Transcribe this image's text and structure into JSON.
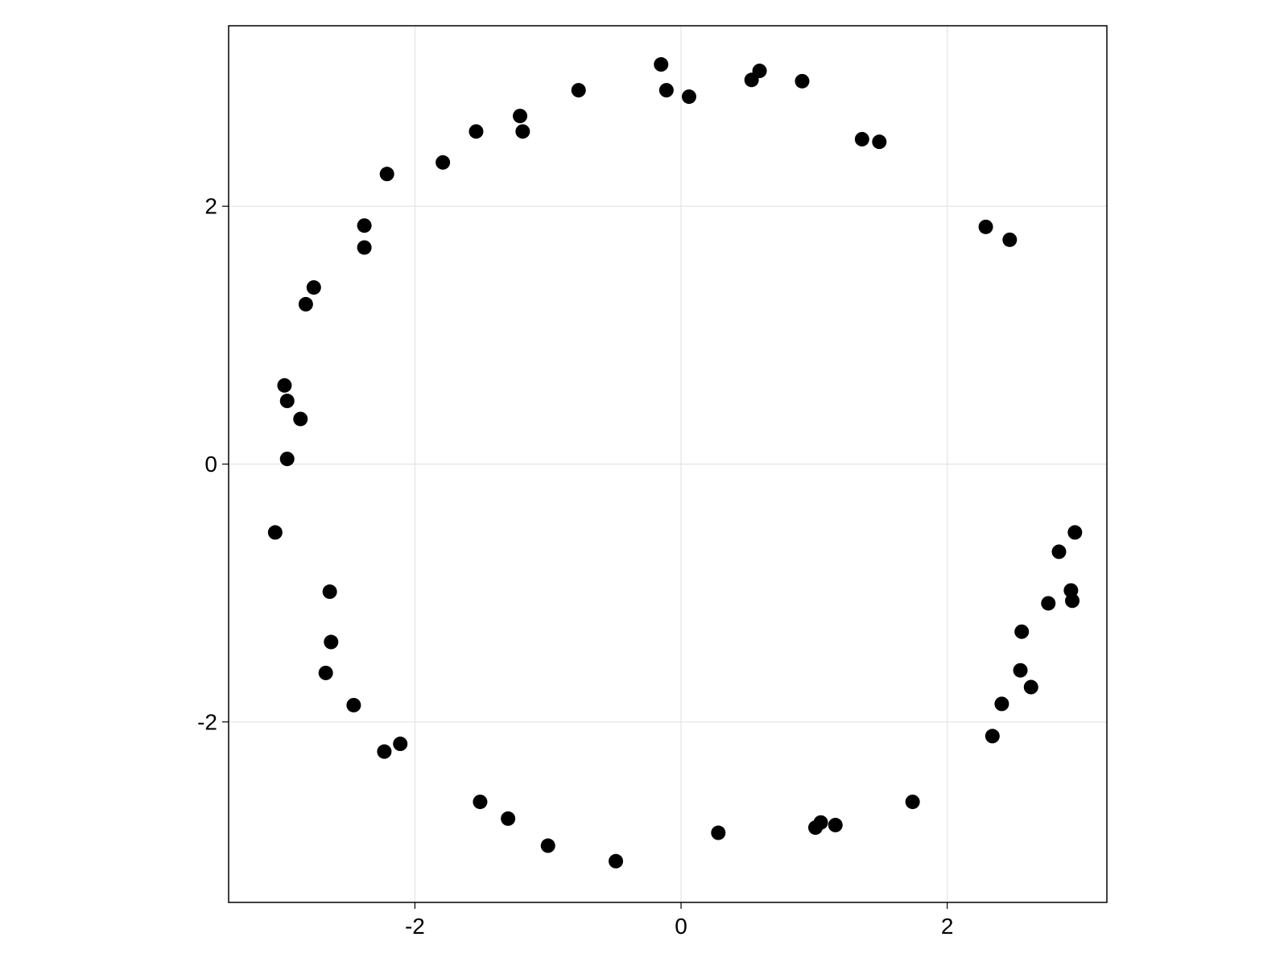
{
  "chart_data": {
    "type": "scatter",
    "title": "",
    "xlabel": "",
    "ylabel": "",
    "xlim": [
      -3.4,
      3.2
    ],
    "ylim": [
      -3.4,
      3.4
    ],
    "grid": true,
    "marker_color": "#000000",
    "x_ticks": [
      {
        "value": -2,
        "label": "-2"
      },
      {
        "value": 0,
        "label": "0"
      },
      {
        "value": 2,
        "label": "2"
      }
    ],
    "y_ticks": [
      {
        "value": -2,
        "label": "-2"
      },
      {
        "value": 0,
        "label": "0"
      },
      {
        "value": 2,
        "label": "2"
      }
    ],
    "series": [
      {
        "points": [
          [
            -0.15,
            3.1
          ],
          [
            -0.11,
            2.9
          ],
          [
            0.06,
            2.85
          ],
          [
            0.53,
            2.98
          ],
          [
            0.59,
            3.05
          ],
          [
            0.91,
            2.97
          ],
          [
            1.36,
            2.52
          ],
          [
            1.49,
            2.5
          ],
          [
            2.29,
            1.84
          ],
          [
            2.47,
            1.74
          ],
          [
            -0.77,
            2.9
          ],
          [
            -1.21,
            2.7
          ],
          [
            -1.19,
            2.58
          ],
          [
            -1.54,
            2.58
          ],
          [
            -1.79,
            2.34
          ],
          [
            -2.21,
            2.25
          ],
          [
            -2.38,
            1.85
          ],
          [
            -2.38,
            1.68
          ],
          [
            -2.76,
            1.37
          ],
          [
            -2.82,
            1.24
          ],
          [
            -2.98,
            0.61
          ],
          [
            -2.96,
            0.49
          ],
          [
            -2.86,
            0.35
          ],
          [
            -2.96,
            0.04
          ],
          [
            -3.05,
            -0.53
          ],
          [
            -2.64,
            -0.99
          ],
          [
            -2.63,
            -1.38
          ],
          [
            -2.67,
            -1.62
          ],
          [
            -2.46,
            -1.87
          ],
          [
            -2.11,
            -2.17
          ],
          [
            -2.23,
            -2.23
          ],
          [
            -1.51,
            -2.62
          ],
          [
            -1.3,
            -2.75
          ],
          [
            -1.0,
            -2.96
          ],
          [
            -0.49,
            -3.08
          ],
          [
            0.28,
            -2.86
          ],
          [
            1.01,
            -2.82
          ],
          [
            1.05,
            -2.78
          ],
          [
            1.16,
            -2.8
          ],
          [
            1.74,
            -2.62
          ],
          [
            2.34,
            -2.11
          ],
          [
            2.41,
            -1.86
          ],
          [
            2.55,
            -1.6
          ],
          [
            2.63,
            -1.73
          ],
          [
            2.56,
            -1.3
          ],
          [
            2.76,
            -1.08
          ],
          [
            2.84,
            -0.68
          ],
          [
            2.93,
            -0.98
          ],
          [
            2.94,
            -1.06
          ],
          [
            2.96,
            -0.53
          ]
        ]
      }
    ]
  }
}
